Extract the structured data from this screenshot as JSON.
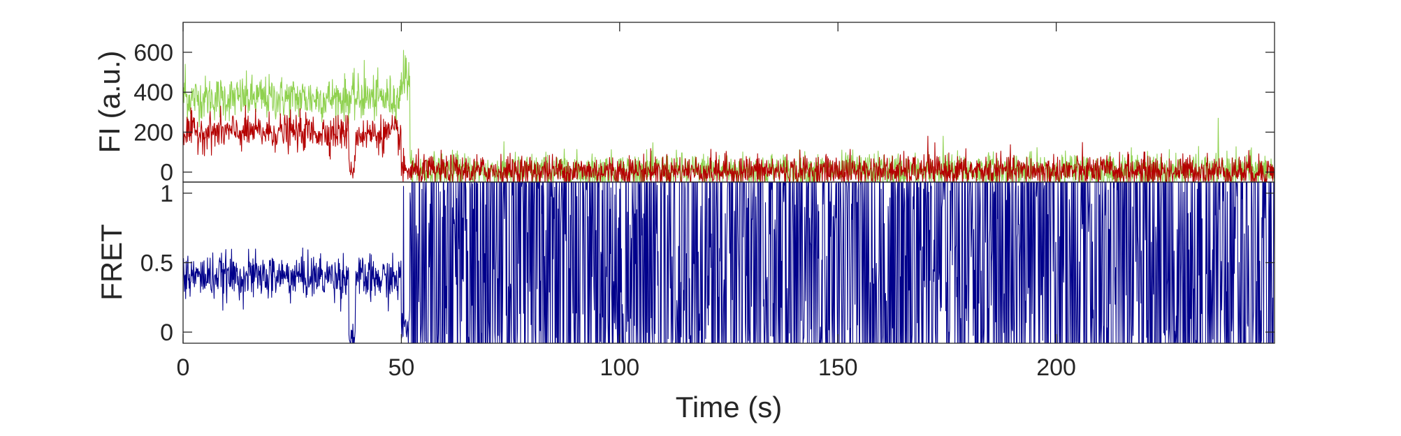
{
  "colors": {
    "donor": "#8fd14f",
    "acceptor": "#b40000",
    "fret": "#00008b",
    "axes": "#262626"
  },
  "chart_data": [
    {
      "type": "line",
      "title": "",
      "xlabel": "",
      "ylabel": "FI (a.u.)",
      "xlim": [
        0,
        250
      ],
      "ylim": [
        -50,
        750
      ],
      "x_ticks": [],
      "y_ticks": [
        0,
        200,
        400,
        600
      ],
      "y_tick_labels": [
        "0",
        "200",
        "400",
        "600"
      ],
      "grid": false,
      "series": [
        {
          "color_key": "donor",
          "segments": [
            {
              "x": [
                0,
                50
              ],
              "mean": 370,
              "noise": 55
            },
            {
              "x": [
                50,
                52
              ],
              "mean": 480,
              "noise": 60
            },
            {
              "x": [
                52,
                250
              ],
              "mean": 5,
              "noise": 45
            }
          ],
          "spikes": [
            [
              0.5,
              540
            ],
            [
              41.5,
              560
            ],
            [
              50.5,
              610
            ],
            [
              237,
              270
            ],
            [
              174,
              180
            ]
          ]
        },
        {
          "color_key": "acceptor",
          "segments": [
            {
              "x": [
                0,
                38
              ],
              "mean": 200,
              "noise": 45
            },
            {
              "x": [
                38,
                39.5
              ],
              "mean": 20,
              "noise": 30
            },
            {
              "x": [
                39.5,
                50
              ],
              "mean": 190,
              "noise": 45
            },
            {
              "x": [
                50,
                250
              ],
              "mean": 5,
              "noise": 40
            }
          ],
          "spikes": [
            [
              170.5,
              180
            ]
          ]
        }
      ]
    },
    {
      "type": "line",
      "title": "",
      "xlabel": "Time (s)",
      "ylabel": "FRET",
      "xlim": [
        0,
        250
      ],
      "ylim": [
        -0.08,
        1.08
      ],
      "x_ticks": [
        0,
        50,
        100,
        150,
        200
      ],
      "x_tick_labels": [
        "0",
        "50",
        "100",
        "150",
        "200"
      ],
      "y_ticks": [
        0,
        0.5,
        1
      ],
      "y_tick_labels": [
        "0",
        "0.5",
        "1"
      ],
      "grid": false,
      "series": [
        {
          "color_key": "fret",
          "segments": [
            {
              "x": [
                0,
                38
              ],
              "mean": 0.4,
              "noise": 0.08
            },
            {
              "x": [
                38,
                39.5
              ],
              "mean": -0.05,
              "noise": 0.1
            },
            {
              "x": [
                39.5,
                50
              ],
              "mean": 0.38,
              "noise": 0.08
            },
            {
              "x": [
                50,
                52
              ],
              "mean": 0.05,
              "noise": 0.08
            },
            {
              "x": [
                52,
                250
              ],
              "mean": 0.5,
              "noise": 1.2
            }
          ],
          "spikes": [
            [
              50.5,
              1.05
            ]
          ]
        }
      ]
    }
  ]
}
